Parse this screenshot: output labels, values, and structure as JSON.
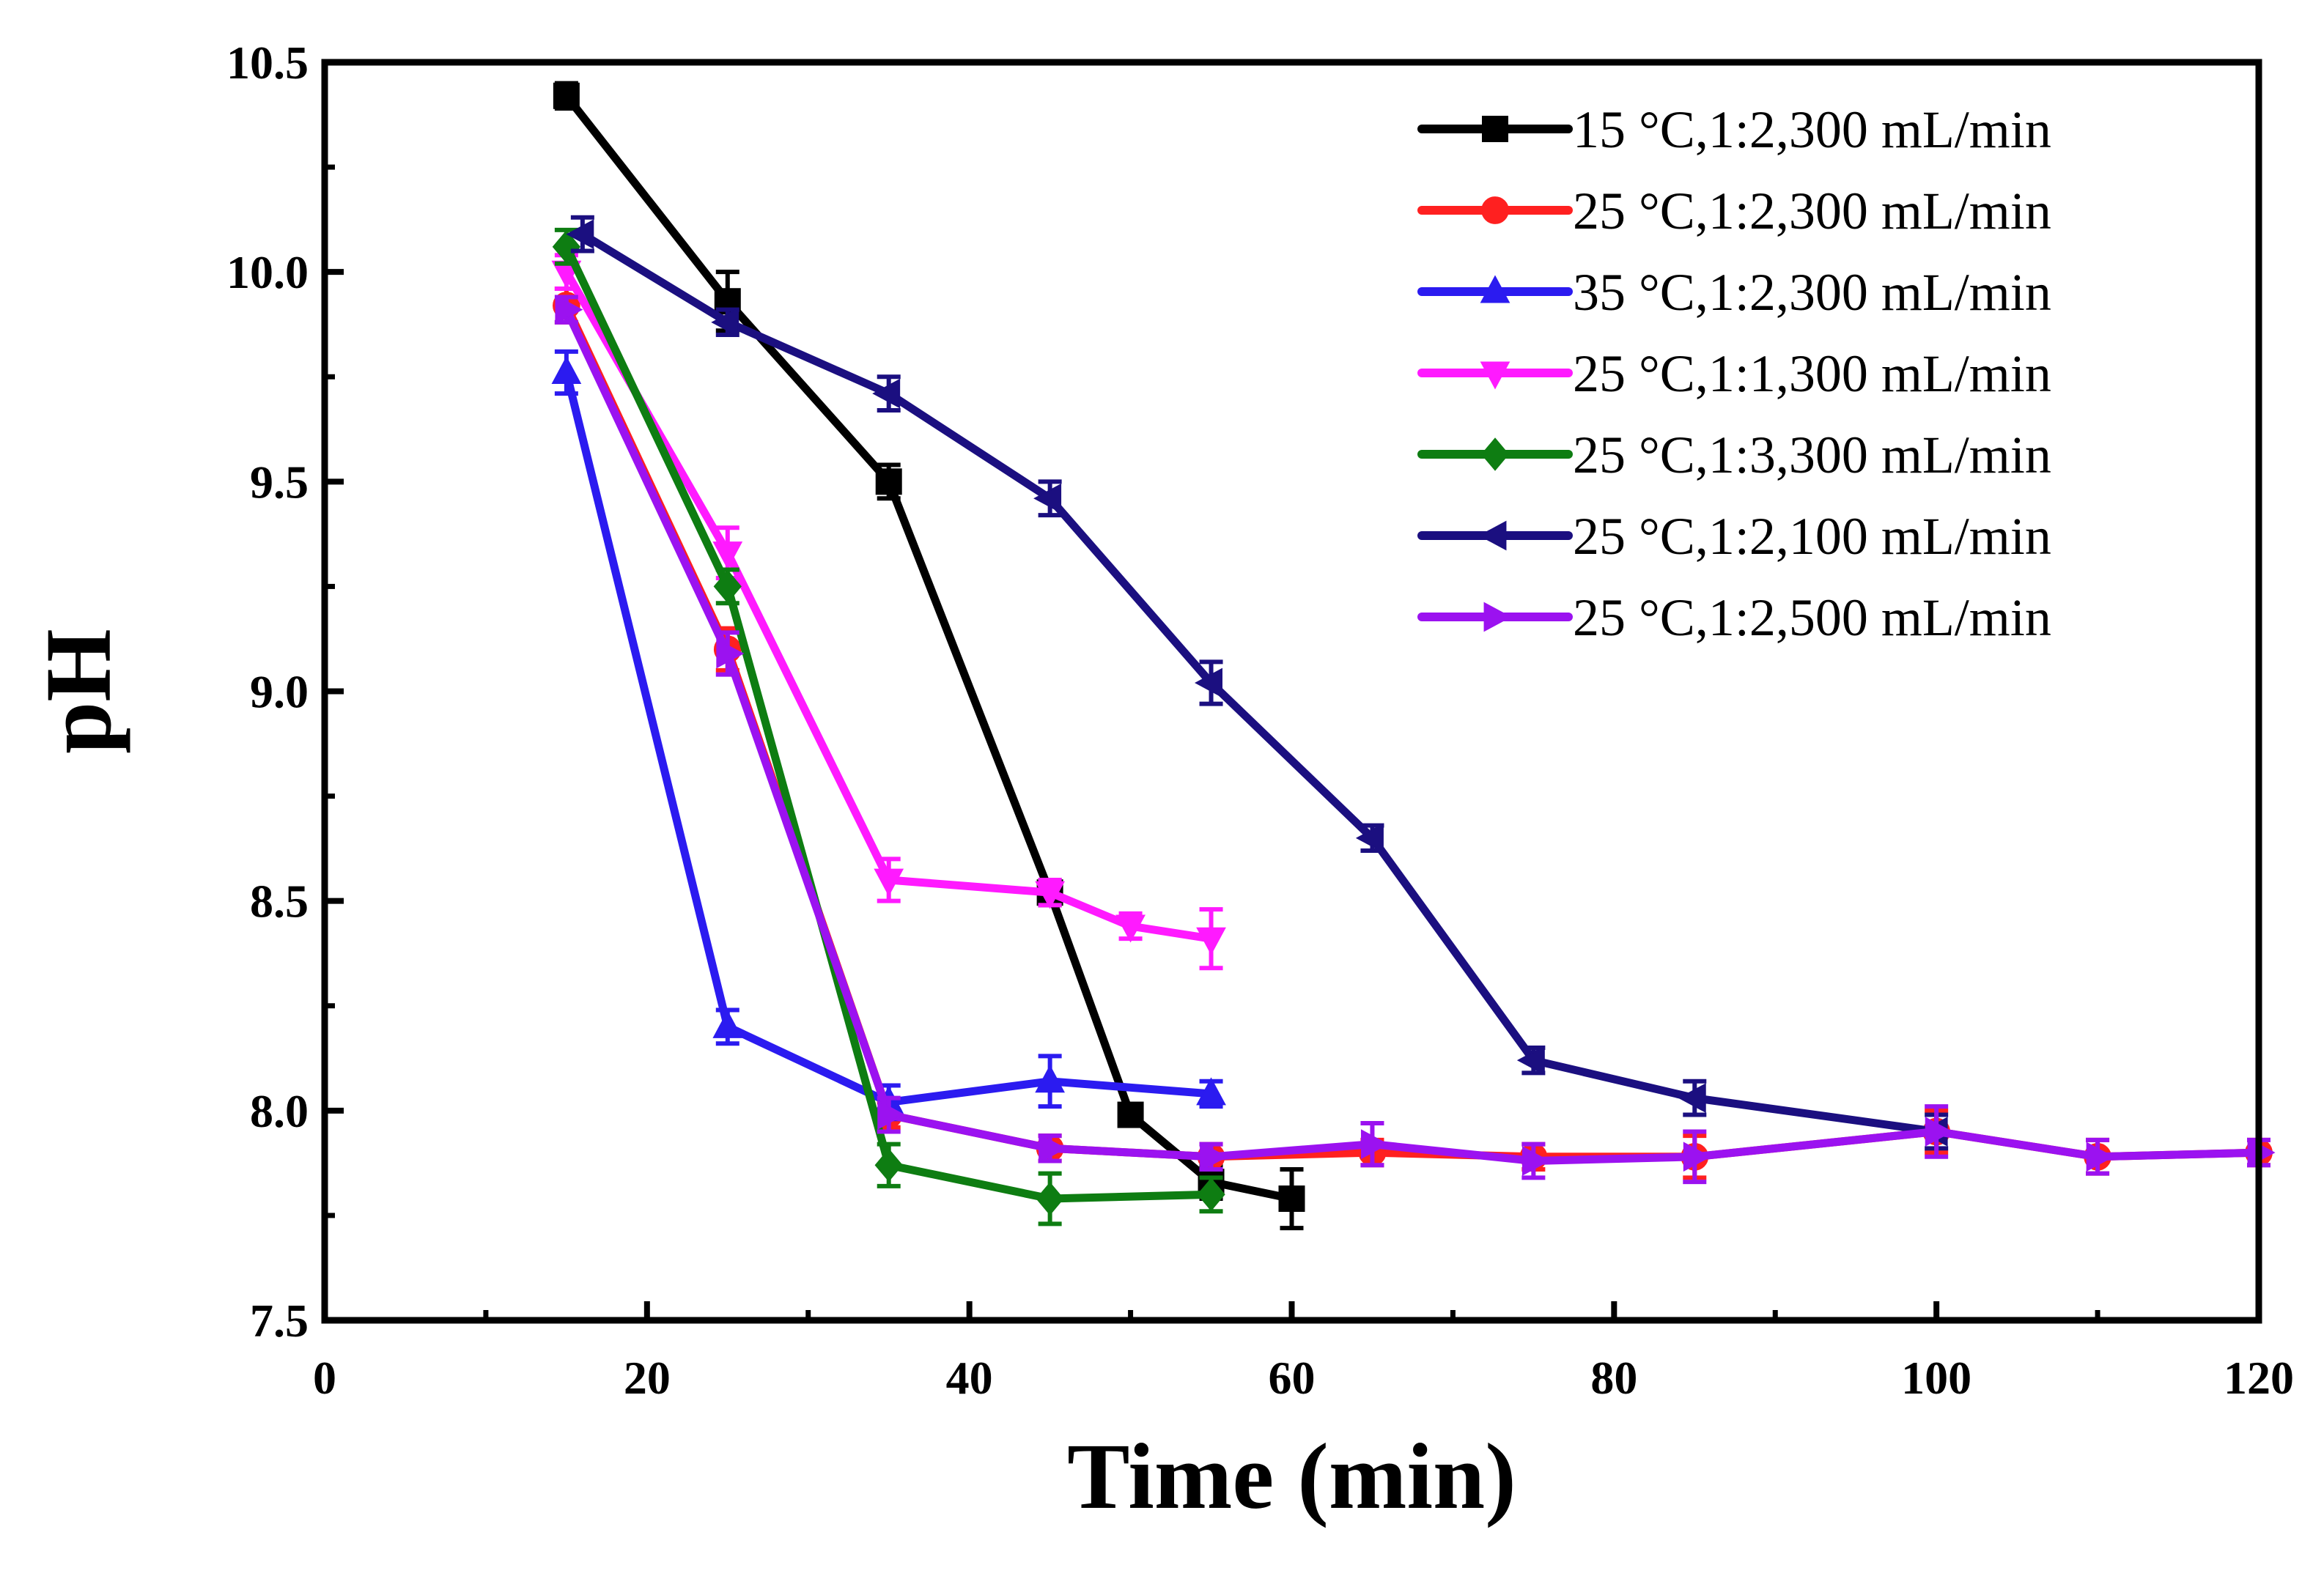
{
  "chart_data": {
    "type": "line",
    "xlabel": "Time (min)",
    "ylabel": "pH",
    "xlim": [
      0,
      120
    ],
    "ylim": [
      7.5,
      10.5
    ],
    "xticks": [
      0,
      20,
      40,
      60,
      80,
      100,
      120
    ],
    "yticks": [
      7.5,
      8.0,
      8.5,
      9.0,
      9.5,
      10.0,
      10.5
    ],
    "xtick_labels": [
      "0",
      "20",
      "40",
      "60",
      "80",
      "100",
      "120"
    ],
    "ytick_labels": [
      "7.5",
      "8.0",
      "8.5",
      "9.0",
      "9.5",
      "10.0",
      "10.5"
    ],
    "grid": false,
    "legend_position": "top-right",
    "series": [
      {
        "name": "15 °C,1:2,300 mL/min",
        "color": "#000000",
        "marker": "square",
        "x": [
          15,
          25,
          35,
          45,
          50,
          55,
          60
        ],
        "y": [
          10.42,
          9.93,
          9.5,
          8.52,
          7.99,
          7.83,
          7.79
        ],
        "err": [
          0.03,
          0.07,
          0.04,
          0.03,
          0.02,
          0.04,
          0.07
        ]
      },
      {
        "name": "25 °C,1:2,300 mL/min",
        "color": "#ff2020",
        "marker": "circle",
        "x": [
          15,
          25,
          35,
          45,
          55,
          65,
          75,
          85,
          100,
          110,
          120
        ],
        "y": [
          9.92,
          9.1,
          7.99,
          7.91,
          7.89,
          7.9,
          7.89,
          7.89,
          7.95,
          7.89,
          7.9
        ],
        "err": [
          0.04,
          0.05,
          0.03,
          0.03,
          0.03,
          0.03,
          0.03,
          0.05,
          0.05,
          0.04,
          0.03
        ]
      },
      {
        "name": "35 °C,1:2,300 mL/min",
        "color": "#2b1bf0",
        "marker": "triangle-up",
        "x": [
          15,
          25,
          35,
          45,
          55
        ],
        "y": [
          9.76,
          8.2,
          8.02,
          8.07,
          8.04
        ],
        "err": [
          0.05,
          0.04,
          0.04,
          0.06,
          0.03
        ]
      },
      {
        "name": "25 °C,1:1,300 mL/min",
        "color": "#ff1aff",
        "marker": "triangle-down",
        "x": [
          15,
          25,
          35,
          45,
          50,
          55
        ],
        "y": [
          10.0,
          9.33,
          8.55,
          8.52,
          8.44,
          8.41
        ],
        "err": [
          0.04,
          0.06,
          0.05,
          0.03,
          0.03,
          0.07
        ]
      },
      {
        "name": "25 °C,1:3,300 mL/min",
        "color": "#0e7d12",
        "marker": "diamond",
        "x": [
          15,
          25,
          35,
          45,
          55
        ],
        "y": [
          10.06,
          9.25,
          7.87,
          7.79,
          7.8
        ],
        "err": [
          0.04,
          0.04,
          0.05,
          0.06,
          0.04
        ]
      },
      {
        "name": "25 °C,1:2,100 mL/min",
        "color": "#1b0f80",
        "marker": "triangle-left",
        "x": [
          16,
          25,
          35,
          45,
          55,
          65,
          75,
          85,
          100
        ],
        "y": [
          10.09,
          9.88,
          9.71,
          9.46,
          9.02,
          8.65,
          8.12,
          8.03,
          7.95
        ],
        "err": [
          0.04,
          0.03,
          0.04,
          0.04,
          0.05,
          0.03,
          0.03,
          0.04,
          0.04
        ]
      },
      {
        "name": "25 °C,1:2,500 mL/min",
        "color": "#9b12f0",
        "marker": "triangle-right",
        "x": [
          15,
          25,
          35,
          45,
          55,
          65,
          75,
          85,
          100,
          110,
          120
        ],
        "y": [
          9.91,
          9.09,
          7.99,
          7.91,
          7.89,
          7.92,
          7.88,
          7.89,
          7.95,
          7.89,
          7.9
        ],
        "err": [
          0.03,
          0.05,
          0.04,
          0.03,
          0.03,
          0.05,
          0.04,
          0.06,
          0.06,
          0.04,
          0.03
        ]
      }
    ]
  }
}
